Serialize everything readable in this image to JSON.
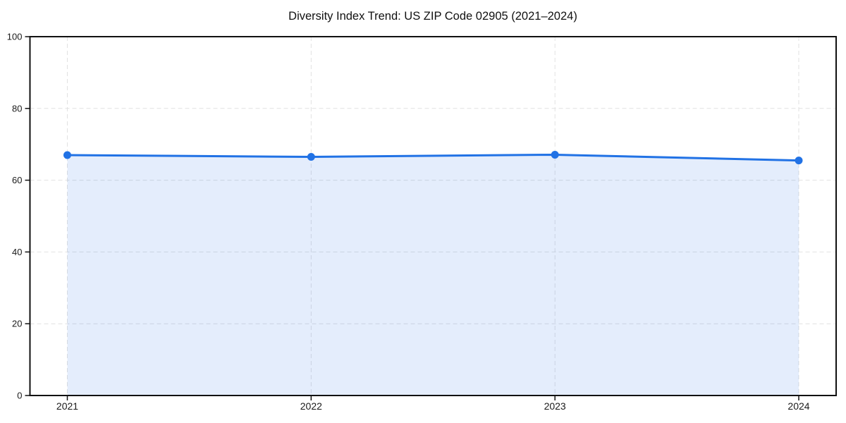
{
  "chart_data": {
    "type": "line",
    "area_fill": true,
    "title": "Diversity Index Trend: US ZIP Code 02905 (2021–2024)",
    "categories": [
      "2021",
      "2022",
      "2023",
      "2024"
    ],
    "series": [
      {
        "name": "Diversity Index",
        "values": [
          67.0,
          66.5,
          67.1,
          65.5
        ]
      }
    ],
    "xlabel": "",
    "ylabel": "",
    "ylim": [
      0,
      100
    ],
    "yticks": [
      0,
      20,
      40,
      60,
      80,
      100
    ],
    "grid": "dashed-both-axes",
    "legend": "none",
    "marker": "circle",
    "colors": {
      "line": "#2172e5",
      "marker": "#2172e5",
      "fill": "rgba(31,111,229,0.12)",
      "grid": "#dedede",
      "spine": "#111111",
      "tick": "#111111",
      "title": "#111111",
      "tick_label": "#1a1a1a",
      "background": "#ffffff"
    }
  }
}
